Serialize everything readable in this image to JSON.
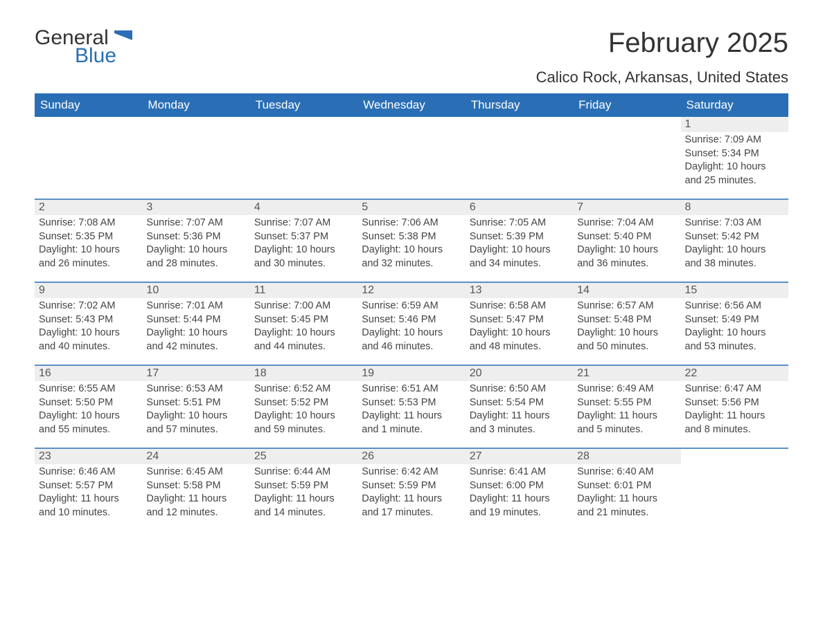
{
  "logo": {
    "word1": "General",
    "word2": "Blue",
    "flag_color": "#2a6fb5"
  },
  "title": "February 2025",
  "location": "Calico Rock, Arkansas, United States",
  "colors": {
    "header_bg": "#2a6fb5",
    "header_text": "#ffffff",
    "daynum_bg": "#eeeeee",
    "week_divider": "#5a8fc4",
    "body_text": "#444444",
    "page_bg": "#ffffff"
  },
  "day_names": [
    "Sunday",
    "Monday",
    "Tuesday",
    "Wednesday",
    "Thursday",
    "Friday",
    "Saturday"
  ],
  "weeks": [
    [
      {
        "empty": true
      },
      {
        "empty": true
      },
      {
        "empty": true
      },
      {
        "empty": true
      },
      {
        "empty": true
      },
      {
        "empty": true
      },
      {
        "day": "1",
        "sunrise": "Sunrise: 7:09 AM",
        "sunset": "Sunset: 5:34 PM",
        "daylight": "Daylight: 10 hours and 25 minutes."
      }
    ],
    [
      {
        "day": "2",
        "sunrise": "Sunrise: 7:08 AM",
        "sunset": "Sunset: 5:35 PM",
        "daylight": "Daylight: 10 hours and 26 minutes."
      },
      {
        "day": "3",
        "sunrise": "Sunrise: 7:07 AM",
        "sunset": "Sunset: 5:36 PM",
        "daylight": "Daylight: 10 hours and 28 minutes."
      },
      {
        "day": "4",
        "sunrise": "Sunrise: 7:07 AM",
        "sunset": "Sunset: 5:37 PM",
        "daylight": "Daylight: 10 hours and 30 minutes."
      },
      {
        "day": "5",
        "sunrise": "Sunrise: 7:06 AM",
        "sunset": "Sunset: 5:38 PM",
        "daylight": "Daylight: 10 hours and 32 minutes."
      },
      {
        "day": "6",
        "sunrise": "Sunrise: 7:05 AM",
        "sunset": "Sunset: 5:39 PM",
        "daylight": "Daylight: 10 hours and 34 minutes."
      },
      {
        "day": "7",
        "sunrise": "Sunrise: 7:04 AM",
        "sunset": "Sunset: 5:40 PM",
        "daylight": "Daylight: 10 hours and 36 minutes."
      },
      {
        "day": "8",
        "sunrise": "Sunrise: 7:03 AM",
        "sunset": "Sunset: 5:42 PM",
        "daylight": "Daylight: 10 hours and 38 minutes."
      }
    ],
    [
      {
        "day": "9",
        "sunrise": "Sunrise: 7:02 AM",
        "sunset": "Sunset: 5:43 PM",
        "daylight": "Daylight: 10 hours and 40 minutes."
      },
      {
        "day": "10",
        "sunrise": "Sunrise: 7:01 AM",
        "sunset": "Sunset: 5:44 PM",
        "daylight": "Daylight: 10 hours and 42 minutes."
      },
      {
        "day": "11",
        "sunrise": "Sunrise: 7:00 AM",
        "sunset": "Sunset: 5:45 PM",
        "daylight": "Daylight: 10 hours and 44 minutes."
      },
      {
        "day": "12",
        "sunrise": "Sunrise: 6:59 AM",
        "sunset": "Sunset: 5:46 PM",
        "daylight": "Daylight: 10 hours and 46 minutes."
      },
      {
        "day": "13",
        "sunrise": "Sunrise: 6:58 AM",
        "sunset": "Sunset: 5:47 PM",
        "daylight": "Daylight: 10 hours and 48 minutes."
      },
      {
        "day": "14",
        "sunrise": "Sunrise: 6:57 AM",
        "sunset": "Sunset: 5:48 PM",
        "daylight": "Daylight: 10 hours and 50 minutes."
      },
      {
        "day": "15",
        "sunrise": "Sunrise: 6:56 AM",
        "sunset": "Sunset: 5:49 PM",
        "daylight": "Daylight: 10 hours and 53 minutes."
      }
    ],
    [
      {
        "day": "16",
        "sunrise": "Sunrise: 6:55 AM",
        "sunset": "Sunset: 5:50 PM",
        "daylight": "Daylight: 10 hours and 55 minutes."
      },
      {
        "day": "17",
        "sunrise": "Sunrise: 6:53 AM",
        "sunset": "Sunset: 5:51 PM",
        "daylight": "Daylight: 10 hours and 57 minutes."
      },
      {
        "day": "18",
        "sunrise": "Sunrise: 6:52 AM",
        "sunset": "Sunset: 5:52 PM",
        "daylight": "Daylight: 10 hours and 59 minutes."
      },
      {
        "day": "19",
        "sunrise": "Sunrise: 6:51 AM",
        "sunset": "Sunset: 5:53 PM",
        "daylight": "Daylight: 11 hours and 1 minute."
      },
      {
        "day": "20",
        "sunrise": "Sunrise: 6:50 AM",
        "sunset": "Sunset: 5:54 PM",
        "daylight": "Daylight: 11 hours and 3 minutes."
      },
      {
        "day": "21",
        "sunrise": "Sunrise: 6:49 AM",
        "sunset": "Sunset: 5:55 PM",
        "daylight": "Daylight: 11 hours and 5 minutes."
      },
      {
        "day": "22",
        "sunrise": "Sunrise: 6:47 AM",
        "sunset": "Sunset: 5:56 PM",
        "daylight": "Daylight: 11 hours and 8 minutes."
      }
    ],
    [
      {
        "day": "23",
        "sunrise": "Sunrise: 6:46 AM",
        "sunset": "Sunset: 5:57 PM",
        "daylight": "Daylight: 11 hours and 10 minutes."
      },
      {
        "day": "24",
        "sunrise": "Sunrise: 6:45 AM",
        "sunset": "Sunset: 5:58 PM",
        "daylight": "Daylight: 11 hours and 12 minutes."
      },
      {
        "day": "25",
        "sunrise": "Sunrise: 6:44 AM",
        "sunset": "Sunset: 5:59 PM",
        "daylight": "Daylight: 11 hours and 14 minutes."
      },
      {
        "day": "26",
        "sunrise": "Sunrise: 6:42 AM",
        "sunset": "Sunset: 5:59 PM",
        "daylight": "Daylight: 11 hours and 17 minutes."
      },
      {
        "day": "27",
        "sunrise": "Sunrise: 6:41 AM",
        "sunset": "Sunset: 6:00 PM",
        "daylight": "Daylight: 11 hours and 19 minutes."
      },
      {
        "day": "28",
        "sunrise": "Sunrise: 6:40 AM",
        "sunset": "Sunset: 6:01 PM",
        "daylight": "Daylight: 11 hours and 21 minutes."
      },
      {
        "empty": true,
        "noband": true
      }
    ]
  ]
}
